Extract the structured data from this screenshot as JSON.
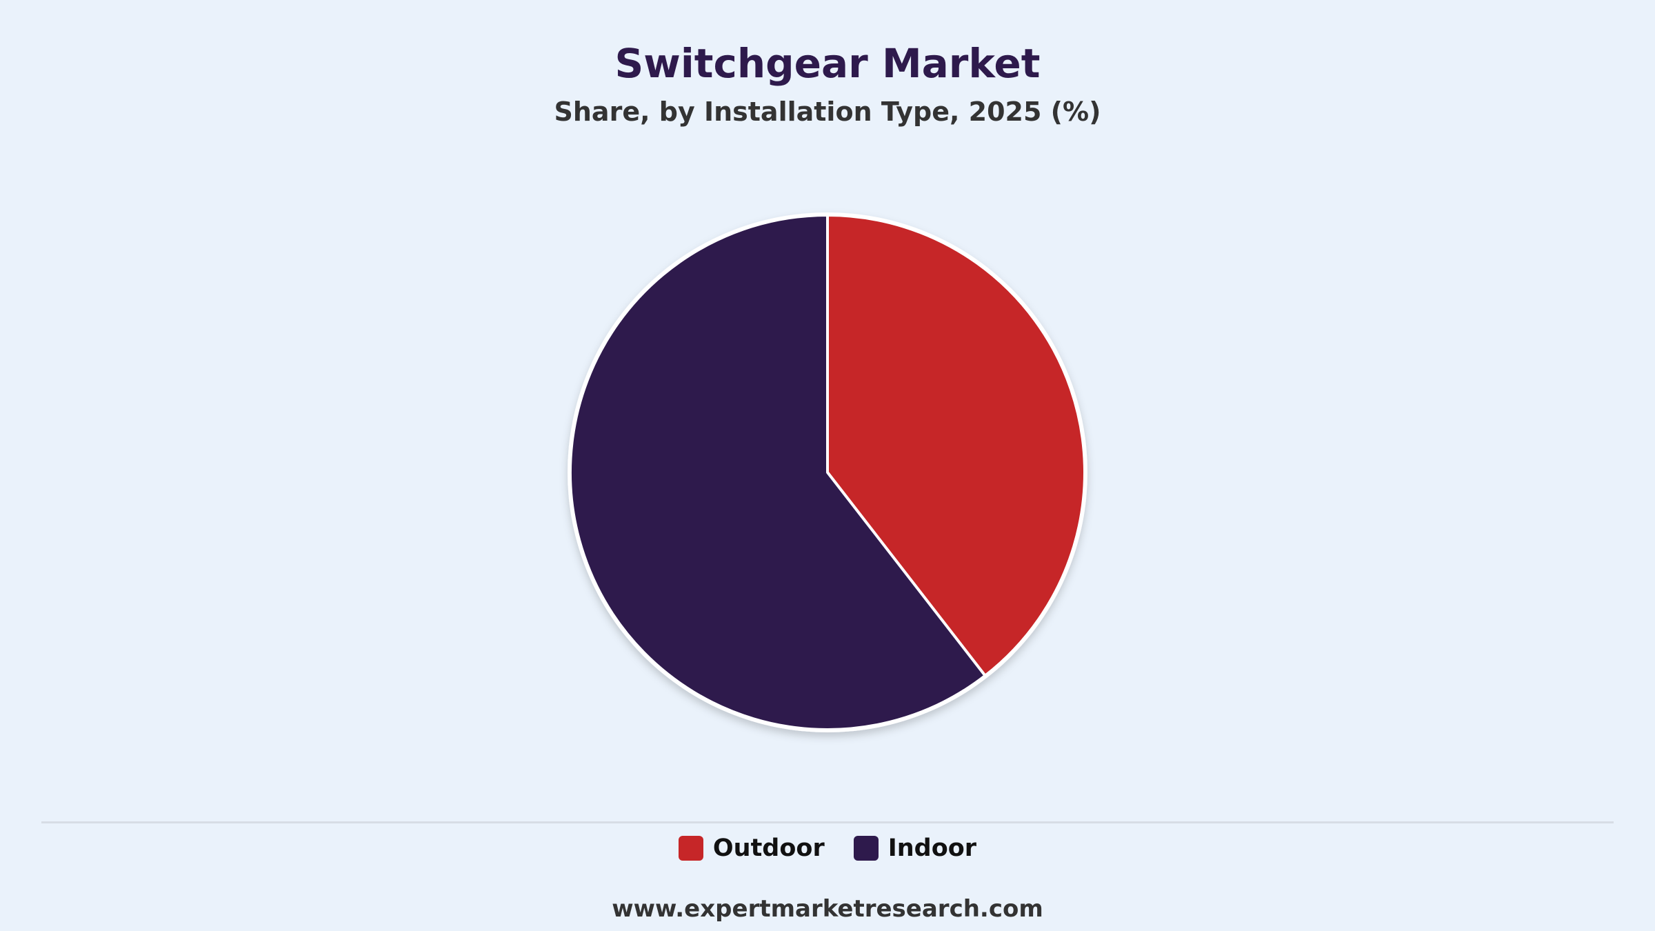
{
  "chart_data": {
    "type": "pie",
    "title": "Switchgear Market",
    "subtitle": "Share, by Installation Type, 2025 (%)",
    "categories": [
      "Outdoor",
      "Indoor"
    ],
    "values": [
      39.5,
      60.5
    ],
    "colors": [
      "#c62628",
      "#2e1a4c"
    ],
    "legend_position": "bottom"
  },
  "footer": {
    "source": "www.expertmarketresearch.com"
  }
}
